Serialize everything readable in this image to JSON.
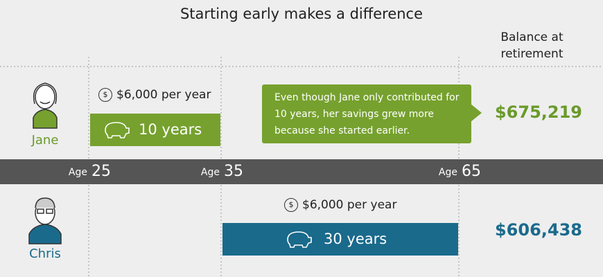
{
  "title": "Starting early makes a difference",
  "balance_header": "Balance at retirement",
  "timeline": [
    {
      "label": "Age",
      "age": 25
    },
    {
      "label": "Age",
      "age": 35
    },
    {
      "label": "Age",
      "age": 65
    }
  ],
  "people": [
    {
      "name": "Jane",
      "contribution": "$6,000 per year",
      "duration": "10 years",
      "balance": "$675,219"
    },
    {
      "name": "Chris",
      "contribution": "$6,000 per year",
      "duration": "30 years",
      "balance": "$606,438"
    }
  ],
  "note": "Even though Jane only contributed for 10 years, her savings grew more because she started earlier."
}
